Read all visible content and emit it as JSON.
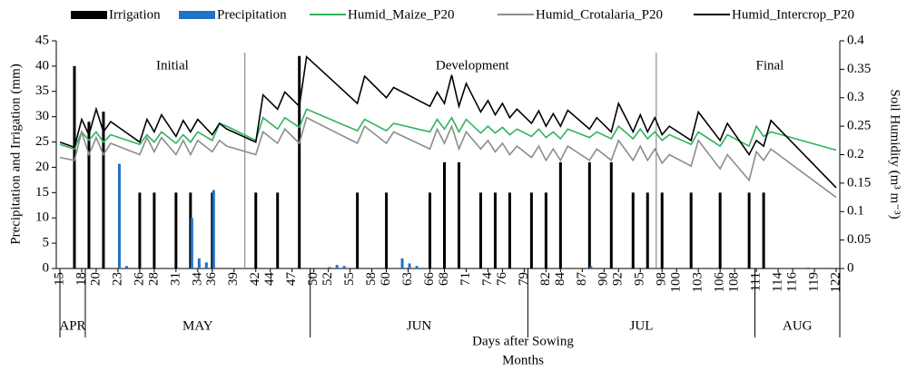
{
  "chart_data": {
    "type": "bar_line",
    "x_title": "Days after Sowing",
    "months_title": "Months",
    "y_title": "Precipitation and Irrigation (mm)",
    "y2_title": "Soil Humidity (m³ m⁻³)",
    "xlim": [
      14.5,
      122.5
    ],
    "xticks": [
      15,
      18,
      20,
      23,
      26,
      28,
      31,
      34,
      36,
      39,
      42,
      44,
      47,
      50,
      52,
      55,
      58,
      60,
      63,
      66,
      68,
      71,
      74,
      76,
      79,
      82,
      84,
      87,
      90,
      92,
      95,
      98,
      100,
      103,
      106,
      108,
      111,
      114,
      116,
      119,
      122
    ],
    "ylim": [
      0,
      45
    ],
    "yticks": [
      0,
      5,
      10,
      15,
      20,
      25,
      30,
      35,
      40,
      45
    ],
    "y2lim": [
      0,
      0.4
    ],
    "y2ticks": [
      0,
      0.05,
      0.1,
      0.15,
      0.2,
      0.25,
      0.3,
      0.35,
      0.4
    ],
    "months": [
      "APR",
      "MAY",
      "JUN",
      "JUL",
      "AUG"
    ],
    "month_edges": [
      15,
      18.5,
      49.5,
      79.5,
      110.8,
      122.5
    ],
    "phases": [
      "Initial",
      "Development",
      "Final"
    ],
    "phase_edges": [
      14.5,
      40.5,
      97.2,
      122.5
    ],
    "x": [
      15,
      17,
      18,
      19,
      20,
      21,
      22,
      26,
      27,
      28,
      29,
      31,
      32,
      33,
      34,
      36,
      37,
      38,
      42,
      43,
      45,
      46,
      48,
      49,
      56,
      57,
      60,
      61,
      66,
      67,
      68,
      69,
      70,
      71,
      73,
      74,
      75,
      76,
      77,
      78,
      80,
      81,
      82,
      83,
      84,
      85,
      88,
      89,
      91,
      92,
      94,
      95,
      96,
      97,
      98,
      99,
      102,
      103,
      106,
      107,
      110,
      111,
      112,
      113,
      122
    ],
    "series": [
      {
        "name": "Irrigation",
        "type": "bar",
        "color": "#000000",
        "x": [
          17,
          19,
          21,
          26,
          28,
          31,
          33,
          36,
          42,
          45,
          48,
          56,
          60,
          66,
          68,
          70,
          73,
          75,
          77,
          80,
          82,
          84,
          88,
          91,
          94,
          96,
          98,
          102,
          106,
          110,
          112
        ],
        "values": [
          40,
          29,
          31,
          15,
          15,
          15,
          15,
          15,
          15,
          15,
          42,
          15,
          15,
          15,
          21,
          21,
          15,
          15,
          15,
          15,
          15,
          21,
          21,
          21,
          15,
          15,
          15,
          15,
          15,
          15,
          15
        ]
      },
      {
        "name": "Precipitation",
        "type": "bar",
        "color": "#1f72c4",
        "x": [
          23,
          24,
          33,
          34,
          35,
          36,
          52,
          53,
          54,
          62,
          63,
          64,
          88,
          118
        ],
        "values": [
          20.7,
          0.5,
          10,
          2,
          1.2,
          15.5,
          0.3,
          0.7,
          0.5,
          2,
          1,
          0.5,
          0.5,
          0.2
        ]
      },
      {
        "name": "Humid_Maize_P20",
        "type": "line",
        "axis": "y2",
        "color": "#2fb35c",
        "values": [
          0.218,
          0.21,
          0.24,
          0.225,
          0.24,
          0.222,
          0.235,
          0.218,
          0.235,
          0.222,
          0.24,
          0.22,
          0.235,
          0.222,
          0.24,
          0.225,
          0.255,
          0.25,
          0.225,
          0.265,
          0.245,
          0.265,
          0.248,
          0.28,
          0.242,
          0.262,
          0.242,
          0.255,
          0.24,
          0.262,
          0.245,
          0.265,
          0.24,
          0.262,
          0.238,
          0.25,
          0.238,
          0.248,
          0.235,
          0.245,
          0.232,
          0.245,
          0.23,
          0.24,
          0.228,
          0.245,
          0.23,
          0.24,
          0.228,
          0.25,
          0.228,
          0.245,
          0.228,
          0.24,
          0.225,
          0.235,
          0.218,
          0.24,
          0.215,
          0.235,
          0.215,
          0.25,
          0.232,
          0.24,
          0.208
        ]
      },
      {
        "name": "Humid_Crotalaria_P20",
        "type": "line",
        "axis": "y2",
        "color": "#8c8c8c",
        "values": [
          0.195,
          0.19,
          0.24,
          0.2,
          0.23,
          0.2,
          0.22,
          0.2,
          0.23,
          0.205,
          0.23,
          0.2,
          0.225,
          0.2,
          0.225,
          0.205,
          0.225,
          0.215,
          0.2,
          0.24,
          0.22,
          0.245,
          0.22,
          0.265,
          0.22,
          0.25,
          0.22,
          0.24,
          0.21,
          0.245,
          0.22,
          0.25,
          0.21,
          0.24,
          0.21,
          0.225,
          0.205,
          0.22,
          0.2,
          0.215,
          0.195,
          0.215,
          0.19,
          0.21,
          0.19,
          0.215,
          0.19,
          0.21,
          0.19,
          0.225,
          0.19,
          0.215,
          0.19,
          0.21,
          0.185,
          0.2,
          0.18,
          0.225,
          0.175,
          0.2,
          0.155,
          0.205,
          0.19,
          0.21,
          0.125
        ]
      },
      {
        "name": "Humid_Intercrop_P20",
        "type": "line",
        "axis": "y2",
        "color": "#000000",
        "values": [
          0.222,
          0.213,
          0.262,
          0.235,
          0.28,
          0.24,
          0.258,
          0.222,
          0.262,
          0.24,
          0.27,
          0.232,
          0.26,
          0.24,
          0.262,
          0.235,
          0.255,
          0.245,
          0.222,
          0.305,
          0.28,
          0.31,
          0.285,
          0.372,
          0.29,
          0.338,
          0.3,
          0.318,
          0.285,
          0.31,
          0.29,
          0.34,
          0.285,
          0.325,
          0.275,
          0.295,
          0.27,
          0.29,
          0.265,
          0.28,
          0.255,
          0.277,
          0.25,
          0.272,
          0.25,
          0.278,
          0.245,
          0.265,
          0.24,
          0.29,
          0.24,
          0.27,
          0.24,
          0.265,
          0.235,
          0.25,
          0.225,
          0.275,
          0.225,
          0.255,
          0.2,
          0.225,
          0.215,
          0.26,
          0.142
        ]
      }
    ]
  }
}
